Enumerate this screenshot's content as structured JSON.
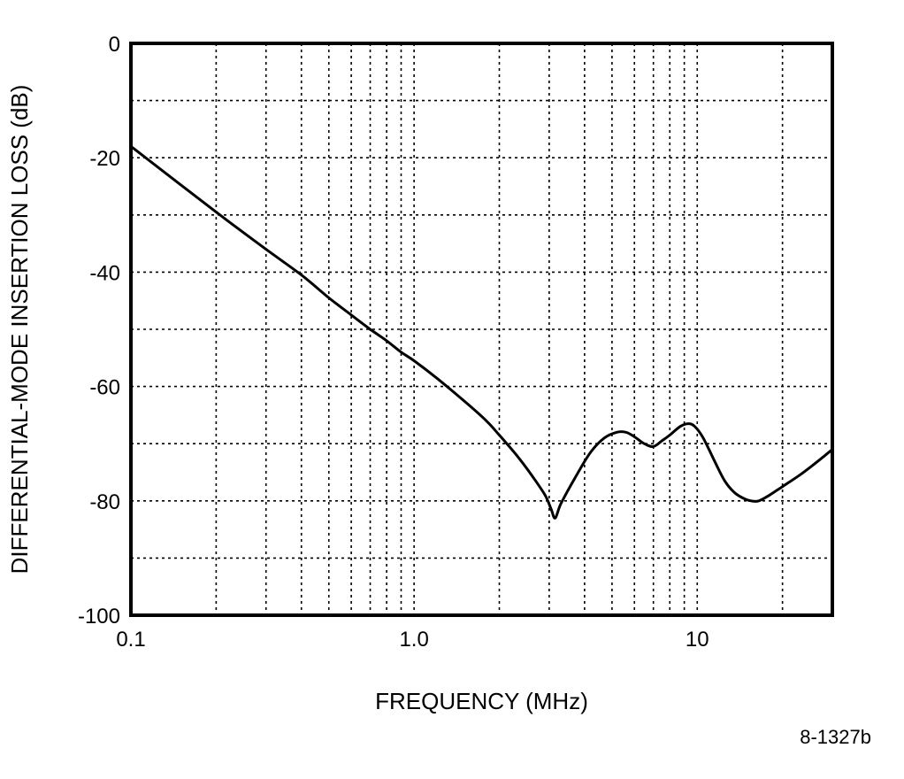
{
  "chart_data": {
    "type": "line",
    "title": "",
    "xlabel": "FREQUENCY (MHz)",
    "ylabel": "DIFFERENTIAL-MODE INSERTION LOSS (dB)",
    "x_scale": "log",
    "xlim": [
      0.1,
      30
    ],
    "ylim": [
      -100,
      0
    ],
    "grid": true,
    "x_ticks": [
      0.1,
      1.0,
      10
    ],
    "x_tick_labels": [
      "0.1",
      "1.0",
      "10"
    ],
    "x_minor_grid": [
      0.2,
      0.3,
      0.4,
      0.5,
      0.6,
      0.7,
      0.8,
      0.9,
      2,
      3,
      4,
      5,
      6,
      7,
      8,
      9,
      20
    ],
    "y_ticks": [
      0,
      -20,
      -40,
      -60,
      -80,
      -100
    ],
    "y_tick_labels": [
      "0",
      "-20",
      "-40",
      "-60",
      "-80",
      "-100"
    ],
    "y_minor_grid": [
      -10,
      -30,
      -50,
      -70,
      -90
    ],
    "series": [
      {
        "x": [
          0.1,
          0.2,
          0.3,
          0.4,
          0.5,
          0.6,
          0.7,
          0.8,
          0.9,
          1.0,
          1.2,
          1.5,
          1.8,
          2.0,
          2.3,
          2.6,
          2.9,
          3.05,
          3.15,
          3.3,
          3.7,
          4.2,
          4.7,
          5.2,
          5.6,
          6.0,
          6.5,
          7.0,
          7.5,
          8.0,
          8.7,
          9.3,
          9.8,
          10.5,
          11.5,
          12.5,
          13.5,
          14.5,
          15.5,
          16.5,
          18,
          20,
          23,
          26,
          30
        ],
        "y": [
          -18,
          -29.5,
          -36,
          -40.5,
          -44.5,
          -47.5,
          -50,
          -52,
          -54,
          -55.5,
          -58.5,
          -62.5,
          -66,
          -68.5,
          -72,
          -75.5,
          -79,
          -81.5,
          -83,
          -80.5,
          -76,
          -71.5,
          -69,
          -68,
          -68,
          -68.8,
          -70,
          -70.5,
          -69.5,
          -68.5,
          -67,
          -66.5,
          -67,
          -69,
          -73,
          -76.5,
          -78.5,
          -79.5,
          -80,
          -80,
          -79,
          -77.5,
          -75.5,
          -73.5,
          -71
        ]
      }
    ]
  },
  "figure_id": "8-1327b"
}
